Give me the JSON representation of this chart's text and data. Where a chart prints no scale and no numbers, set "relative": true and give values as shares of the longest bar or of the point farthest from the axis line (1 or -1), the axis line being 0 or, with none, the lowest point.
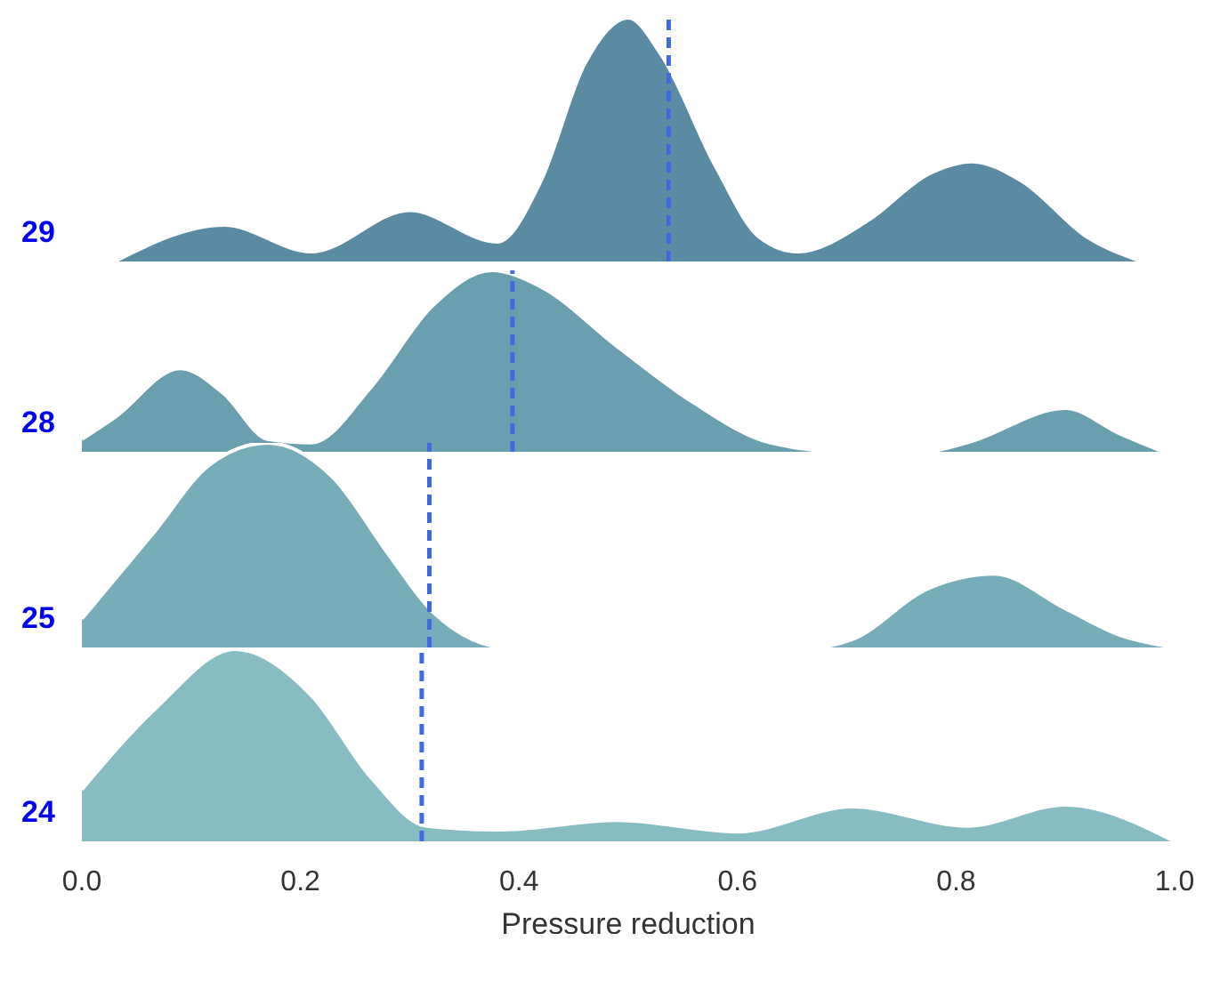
{
  "chart_data": [
    {
      "type": "area",
      "relative": true,
      "ylabel": "29",
      "xlim": [
        0,
        1
      ],
      "tick_labels": false,
      "x": [
        0.03,
        0.13,
        0.21,
        0.3,
        0.38,
        0.42,
        0.46,
        0.5,
        0.53,
        0.58,
        0.62,
        0.655,
        0.72,
        0.775,
        0.815,
        0.86,
        0.92,
        0.97
      ],
      "series": [
        {
          "color": "#5b8ba3",
          "values": [
            0,
            0.15,
            0.04,
            0.21,
            0.08,
            0.33,
            0.81,
            1,
            0.85,
            0.39,
            0.1,
            0.04,
            0.17,
            0.36,
            0.41,
            0.33,
            0.1,
            0
          ]
        }
      ],
      "ref_lines": [
        {
          "axis": "x",
          "value": 0.537,
          "color": "#4169e1",
          "line_style": "dashed"
        }
      ]
    },
    {
      "type": "area",
      "relative": true,
      "ylabel": "28",
      "xlim": [
        0,
        1
      ],
      "tick_labels": false,
      "x": [
        0,
        0.03,
        0.09,
        0.13,
        0.17,
        0.21,
        0.265,
        0.32,
        0.375,
        0.42,
        0.49,
        0.56,
        0.63,
        0.7,
        0.77,
        0.81,
        0.9,
        0.95,
        0.99
      ],
      "series": [
        {
          "color": "#6a9fb0",
          "values": [
            0.07,
            0.19,
            0.46,
            0.32,
            0.07,
            0.05,
            0.36,
            0.8,
            1,
            0.91,
            0.58,
            0.27,
            0.05,
            0,
            0,
            0.05,
            0.24,
            0.1,
            0
          ]
        }
      ],
      "ref_lines": [
        {
          "axis": "x",
          "value": 0.394,
          "color": "#4169e1",
          "line_style": "dashed"
        }
      ]
    },
    {
      "type": "area",
      "relative": true,
      "ylabel": "25",
      "xlim": [
        0,
        1
      ],
      "tick_labels": false,
      "x": [
        0,
        0.067,
        0.116,
        0.17,
        0.23,
        0.28,
        0.32,
        0.39,
        0.67,
        0.705,
        0.775,
        0.835,
        0.9,
        0.95,
        1
      ],
      "series": [
        {
          "color": "#77adb9",
          "values": [
            0.14,
            0.57,
            0.89,
            1,
            0.83,
            0.46,
            0.18,
            0,
            0,
            0.04,
            0.29,
            0.36,
            0.19,
            0.06,
            0
          ]
        }
      ],
      "ref_lines": [
        {
          "axis": "x",
          "value": 0.318,
          "color": "#4169e1",
          "line_style": "dashed"
        }
      ]
    },
    {
      "type": "area",
      "relative": true,
      "ylabel": "24",
      "xlabel": "Pressure reduction",
      "xlim": [
        0,
        1
      ],
      "tick_labels": "x",
      "xticks": [
        {
          "value": 0,
          "label": "0.0"
        },
        {
          "value": 0.2,
          "label": "0.2"
        },
        {
          "value": 0.4,
          "label": "0.4"
        },
        {
          "value": 0.6,
          "label": "0.6"
        },
        {
          "value": 0.8,
          "label": "0.8"
        },
        {
          "value": 1,
          "label": "1.0"
        }
      ],
      "x": [
        0,
        0.067,
        0.14,
        0.21,
        0.265,
        0.315,
        0.385,
        0.49,
        0.6,
        0.705,
        0.81,
        0.9,
        1
      ],
      "series": [
        {
          "color": "#87bcc2",
          "values": [
            0.27,
            0.69,
            1,
            0.76,
            0.33,
            0.08,
            0.06,
            0.11,
            0.05,
            0.18,
            0.08,
            0.19,
            0
          ]
        }
      ],
      "ref_lines": [
        {
          "axis": "x",
          "value": 0.311,
          "color": "#4169e1",
          "line_style": "dashed"
        }
      ]
    }
  ]
}
